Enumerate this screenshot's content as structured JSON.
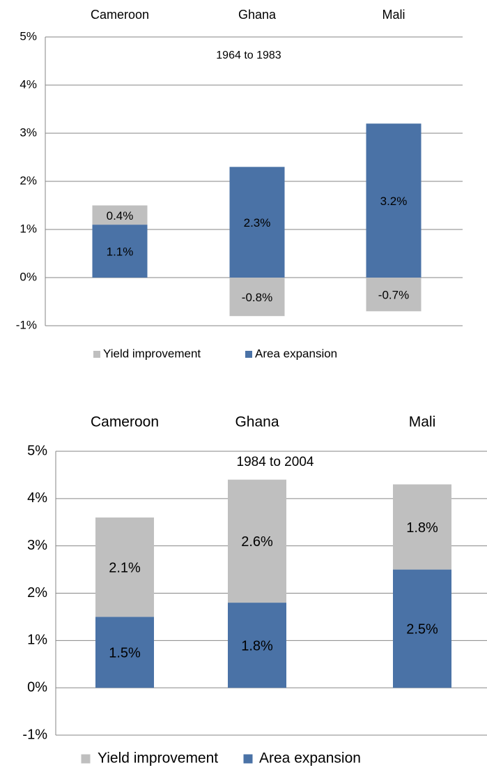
{
  "chart_data": [
    {
      "type": "bar",
      "stacked": true,
      "subtitle": "1964 to 1983",
      "categories": [
        "Cameroon",
        "Ghana",
        "Mali"
      ],
      "series": [
        {
          "name": "Yield improvement",
          "color": "#bfbfbf",
          "values": [
            0.4,
            -0.8,
            -0.7
          ],
          "value_labels": [
            "0.4%",
            "-0.8%",
            "-0.7%"
          ]
        },
        {
          "name": "Area expansion",
          "color": "#4a72a6",
          "values": [
            1.1,
            2.3,
            3.2
          ],
          "value_labels": [
            "1.1%",
            "2.3%",
            "3.2%"
          ]
        }
      ],
      "ylim": [
        -1,
        5
      ],
      "yticks": [
        {
          "value": -1,
          "label": "-1%"
        },
        {
          "value": 0,
          "label": "0%"
        },
        {
          "value": 1,
          "label": "1%"
        },
        {
          "value": 2,
          "label": "2%"
        },
        {
          "value": 3,
          "label": "3%"
        },
        {
          "value": 4,
          "label": "4%"
        },
        {
          "value": 5,
          "label": "5%"
        }
      ],
      "grid": true,
      "legend": "bottom"
    },
    {
      "type": "bar",
      "stacked": true,
      "subtitle": "1984 to 2004",
      "categories": [
        "Cameroon",
        "Ghana",
        "Mali"
      ],
      "series": [
        {
          "name": "Yield improvement",
          "color": "#bfbfbf",
          "values": [
            2.1,
            2.6,
            1.8
          ],
          "value_labels": [
            "2.1%",
            "2.6%",
            "1.8%"
          ]
        },
        {
          "name": "Area expansion",
          "color": "#4a72a6",
          "values": [
            1.5,
            1.8,
            2.5
          ],
          "value_labels": [
            "1.5%",
            "1.8%",
            "2.5%"
          ]
        }
      ],
      "ylim": [
        -1,
        5
      ],
      "yticks": [
        {
          "value": -1,
          "label": "-1%"
        },
        {
          "value": 0,
          "label": "0%"
        },
        {
          "value": 1,
          "label": "1%"
        },
        {
          "value": 2,
          "label": "2%"
        },
        {
          "value": 3,
          "label": "3%"
        },
        {
          "value": 4,
          "label": "4%"
        },
        {
          "value": 5,
          "label": "5%"
        }
      ],
      "grid": true,
      "legend": "bottom"
    }
  ]
}
